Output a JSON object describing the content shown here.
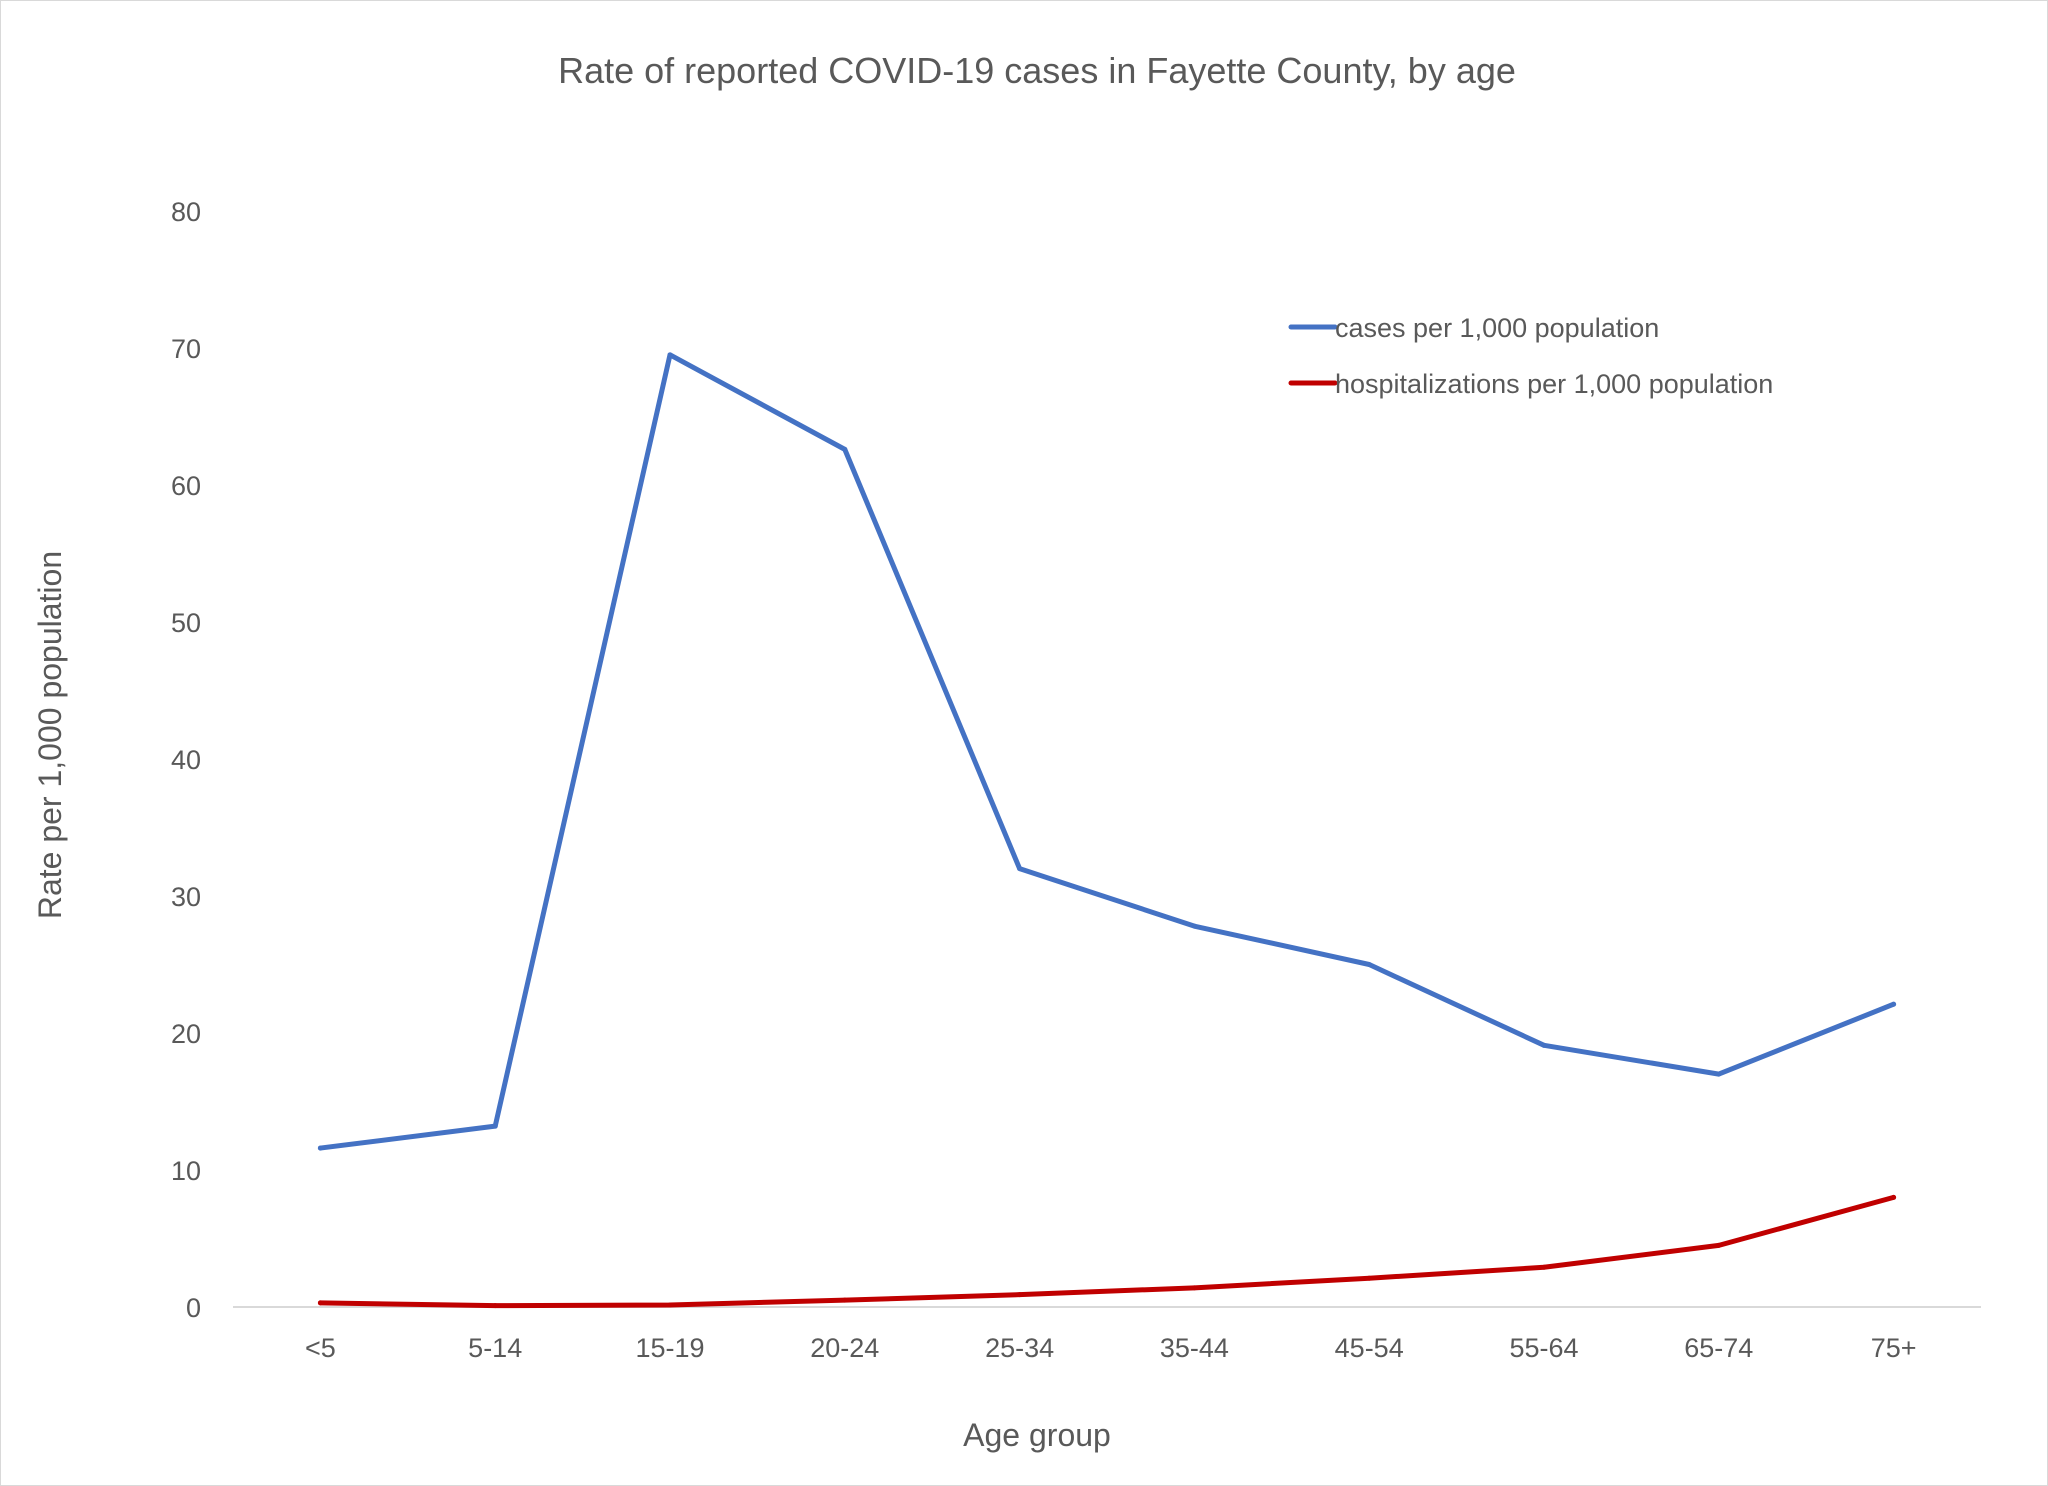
{
  "chart_data": {
    "type": "line",
    "title": "Rate of reported COVID-19 cases in Fayette County, by age",
    "xlabel": "Age group",
    "ylabel": "Rate per 1,000 population",
    "categories": [
      "<5",
      "5-14",
      "15-19",
      "20-24",
      "25-34",
      "35-44",
      "45-54",
      "55-64",
      "65-74",
      "75+"
    ],
    "ylim": [
      0,
      80
    ],
    "yticks": [
      "0",
      "10",
      "20",
      "30",
      "40",
      "50",
      "60",
      "70",
      "80"
    ],
    "grid": false,
    "legend_position": "top-right",
    "series": [
      {
        "name": "cases per 1,000 population",
        "color": "#4472c4",
        "values": [
          11.6,
          13.2,
          69.5,
          62.6,
          32.0,
          27.8,
          25.0,
          19.1,
          17.0,
          22.1
        ]
      },
      {
        "name": "hospitalizations per 1,000 population",
        "color": "#c00000",
        "values": [
          0.3,
          0.1,
          0.15,
          0.5,
          0.9,
          1.4,
          2.1,
          2.9,
          4.5,
          8.0
        ]
      }
    ]
  }
}
